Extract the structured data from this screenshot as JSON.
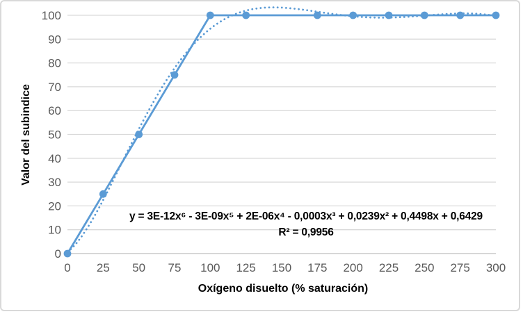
{
  "chart_data": {
    "type": "line",
    "title": "",
    "xlabel": "Oxígeno disuelto (% saturación)",
    "ylabel": "Valor del subindice",
    "x": [
      0,
      25,
      50,
      75,
      100,
      125,
      175,
      200,
      225,
      250,
      275,
      300
    ],
    "y": [
      0,
      25,
      50,
      75,
      100,
      100,
      100,
      100,
      100,
      100,
      100,
      100
    ],
    "xlim": [
      0,
      300
    ],
    "ylim": [
      0,
      100
    ],
    "x_ticks": [
      0,
      25,
      50,
      75,
      100,
      125,
      150,
      175,
      200,
      225,
      250,
      275,
      300
    ],
    "y_ticks": [
      0,
      10,
      20,
      30,
      40,
      50,
      60,
      70,
      80,
      90,
      100
    ],
    "grid": "horizontal",
    "legend": "none",
    "marker": "circle",
    "colors": {
      "series": "#5B9BD5",
      "trendline": "#5B9BD5",
      "gridline": "#D9D9D9",
      "axis_line": "#BFBFBF",
      "tick_label": "#595959",
      "text": "#000000",
      "background": "#FFFFFF",
      "border": "#D9D9D9"
    },
    "trendline": {
      "type": "polynomial",
      "degree": 6,
      "style": "dotted",
      "equation": "y = 3E-12x⁶ - 3E-09x⁵ + 2E-06x⁴ - 0,0003x³ + 0,0239x² + 0,4498x + 0,6429",
      "r_squared_label": "R² = 0,9956"
    }
  }
}
